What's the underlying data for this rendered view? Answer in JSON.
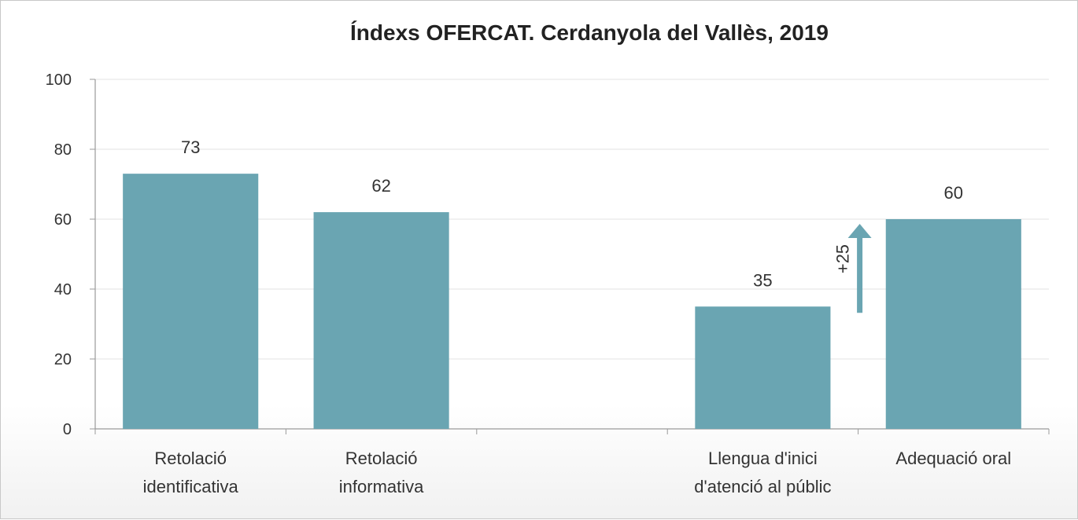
{
  "chart_data": {
    "type": "bar",
    "title": "Índexs OFERCAT. Cerdanyola del Vallès, 2019",
    "xlabel": "",
    "ylabel": "",
    "ylim": [
      0,
      100
    ],
    "yticks": [
      0,
      20,
      40,
      60,
      80,
      100
    ],
    "grid": true,
    "categories": [
      [
        "Retolació",
        "identificativa"
      ],
      [
        "Retolació",
        "informativa"
      ],
      [],
      [
        "Llengua d'inici",
        "d'atenció al públic"
      ],
      [
        "Adequació oral"
      ]
    ],
    "values": [
      73,
      62,
      null,
      35,
      60
    ],
    "data_labels": [
      "73",
      "62",
      "",
      "35",
      "60"
    ],
    "bar_color": "#6aa5b2",
    "annotation": {
      "text": "+25",
      "from_value": 35,
      "to_value": 60,
      "color": "#6aa5b2"
    }
  }
}
